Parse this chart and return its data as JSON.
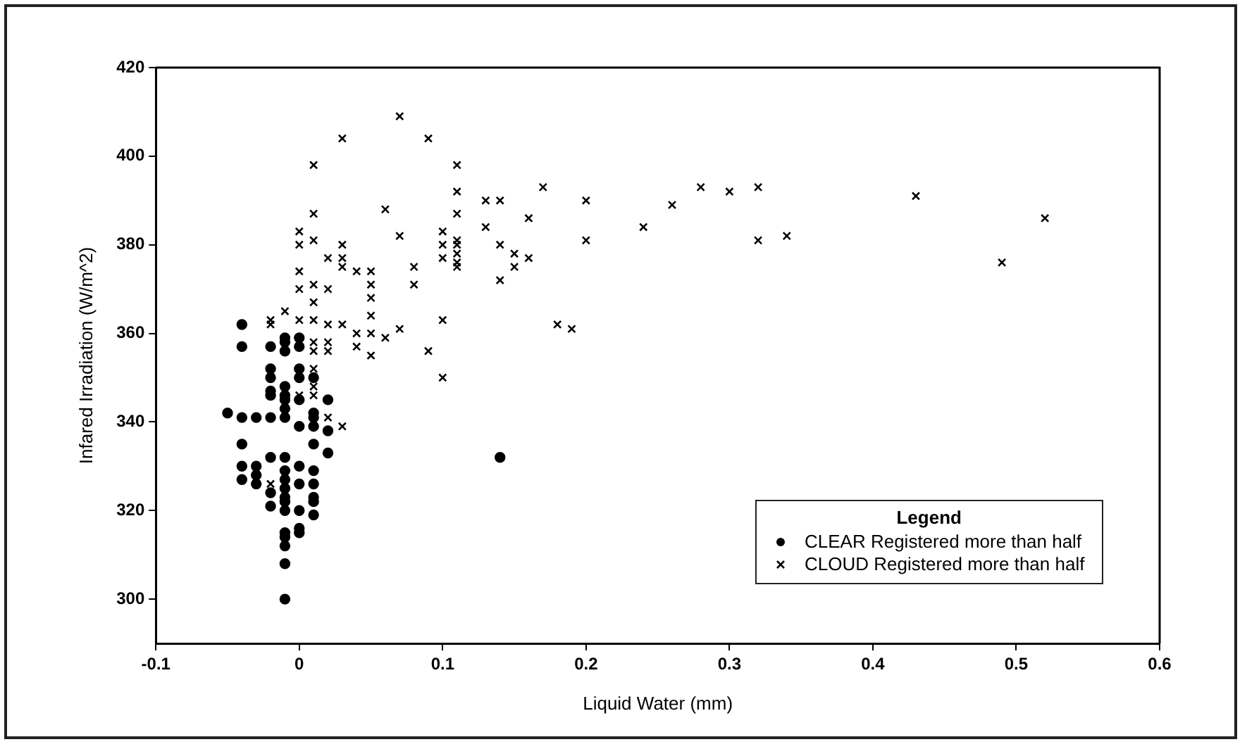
{
  "chart_data": {
    "type": "scatter",
    "xlabel": "Liquid Water (mm)",
    "ylabel": "Infared Irradiation (W/m^2)",
    "legend_title": "Legend",
    "legend": "bottom right",
    "grid": false,
    "xlim": [
      -0.1,
      0.6
    ],
    "xticks": [
      -0.1,
      0,
      0.1,
      0.2,
      0.3,
      0.4,
      0.5,
      0.6
    ],
    "ylim": [
      290,
      420
    ],
    "yticks": [
      300,
      320,
      340,
      360,
      380,
      400,
      420
    ],
    "series": [
      {
        "name": "CLEAR Registered more than half",
        "color": "#000000",
        "marker": "circle",
        "x": [
          -0.05,
          -0.04,
          -0.04,
          -0.04,
          -0.04,
          -0.04,
          -0.04,
          -0.03,
          -0.03,
          -0.03,
          -0.03,
          -0.02,
          -0.02,
          -0.02,
          -0.02,
          -0.02,
          -0.02,
          -0.02,
          -0.02,
          -0.02,
          -0.01,
          -0.01,
          -0.01,
          -0.01,
          -0.01,
          -0.01,
          -0.01,
          -0.01,
          -0.01,
          -0.01,
          -0.01,
          -0.01,
          -0.01,
          -0.01,
          -0.01,
          -0.01,
          -0.01,
          -0.01,
          -0.01,
          -0.01,
          0,
          0,
          0,
          0,
          0,
          0,
          0,
          0,
          0,
          0,
          0,
          0.01,
          0.01,
          0.01,
          0.01,
          0.01,
          0.01,
          0.01,
          0.01,
          0.01,
          0.01,
          0.02,
          0.02,
          0.02,
          0.14
        ],
        "values": [
          342,
          362,
          357,
          341,
          335,
          330,
          327,
          341,
          330,
          328,
          326,
          357,
          352,
          350,
          347,
          346,
          341,
          332,
          324,
          321,
          359,
          358,
          356,
          348,
          346,
          345,
          343,
          341,
          332,
          329,
          327,
          325,
          323,
          322,
          320,
          315,
          314,
          312,
          308,
          300,
          359,
          357,
          352,
          350,
          345,
          339,
          330,
          326,
          320,
          316,
          315,
          350,
          342,
          341,
          339,
          335,
          329,
          326,
          323,
          322,
          319,
          345,
          338,
          333,
          332
        ]
      },
      {
        "name": "CLOUD Registered more than half",
        "color": "#000000",
        "marker": "cross",
        "x": [
          -0.02,
          -0.02,
          -0.02,
          -0.01,
          0,
          0,
          0,
          0,
          0,
          0,
          0.01,
          0.01,
          0.01,
          0.01,
          0.01,
          0.01,
          0.01,
          0.01,
          0.01,
          0.01,
          0.01,
          0.02,
          0.02,
          0.02,
          0.02,
          0.02,
          0.02,
          0.03,
          0.03,
          0.03,
          0.03,
          0.03,
          0.03,
          0.04,
          0.04,
          0.04,
          0.05,
          0.05,
          0.05,
          0.05,
          0.05,
          0.05,
          0.06,
          0.06,
          0.07,
          0.07,
          0.07,
          0.08,
          0.08,
          0.09,
          0.09,
          0.1,
          0.1,
          0.1,
          0.1,
          0.1,
          0.11,
          0.11,
          0.11,
          0.11,
          0.11,
          0.11,
          0.11,
          0.11,
          0.13,
          0.13,
          0.14,
          0.14,
          0.14,
          0.15,
          0.15,
          0.16,
          0.16,
          0.17,
          0.18,
          0.19,
          0.2,
          0.2,
          0.24,
          0.26,
          0.28,
          0.3,
          0.32,
          0.32,
          0.34,
          0.43,
          0.49,
          0.52
        ],
        "values": [
          363,
          362,
          326,
          365,
          383,
          380,
          374,
          370,
          363,
          346,
          398,
          387,
          381,
          371,
          367,
          363,
          358,
          356,
          352,
          348,
          346,
          377,
          370,
          362,
          358,
          356,
          341,
          404,
          380,
          377,
          375,
          362,
          339,
          374,
          360,
          357,
          374,
          371,
          368,
          364,
          360,
          355,
          388,
          359,
          409,
          382,
          361,
          375,
          371,
          404,
          356,
          383,
          380,
          377,
          363,
          350,
          398,
          392,
          387,
          381,
          380,
          378,
          376,
          375,
          390,
          384,
          390,
          380,
          372,
          378,
          375,
          386,
          377,
          393,
          362,
          361,
          390,
          381,
          384,
          389,
          393,
          392,
          393,
          381,
          382,
          391,
          376,
          386
        ]
      }
    ]
  }
}
